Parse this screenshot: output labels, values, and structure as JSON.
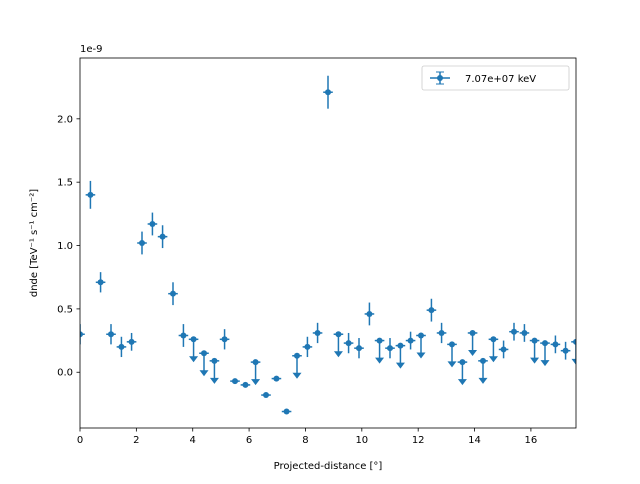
{
  "chart_data": {
    "type": "scatter",
    "subtype": "errorbar",
    "xlabel": "Projected-distance [°]",
    "ylabel": "dnde [TeV⁻¹ s⁻¹ cm⁻²]",
    "y_offset_label": "1e-9",
    "xlim": [
      0,
      17.6
    ],
    "ylim": [
      -0.44,
      2.48
    ],
    "x_ticks": [
      0,
      2,
      4,
      6,
      8,
      10,
      12,
      14,
      16
    ],
    "x_tick_labels": [
      "0",
      "2",
      "4",
      "6",
      "8",
      "10",
      "12",
      "14",
      "16"
    ],
    "y_ticks": [
      0.0,
      0.5,
      1.0,
      1.5,
      2.0
    ],
    "y_tick_labels": [
      "0.0",
      "0.5",
      "1.0",
      "1.5",
      "2.0"
    ],
    "grid": false,
    "legend": {
      "placement": "top-right",
      "entries": [
        "7.07e+07 keV"
      ]
    },
    "color": "#1f77b4",
    "xerr": 0.17,
    "series": [
      {
        "name": "7.07e+07 keV",
        "points": [
          {
            "x": 0.0,
            "y": 0.3,
            "yerr": 0.08,
            "ul": false
          },
          {
            "x": 0.37,
            "y": 1.4,
            "yerr": 0.11,
            "ul": false
          },
          {
            "x": 0.73,
            "y": 0.71,
            "yerr": 0.08,
            "ul": false
          },
          {
            "x": 1.1,
            "y": 0.3,
            "yerr": 0.08,
            "ul": false
          },
          {
            "x": 1.47,
            "y": 0.2,
            "yerr": 0.08,
            "ul": false
          },
          {
            "x": 1.83,
            "y": 0.24,
            "yerr": 0.07,
            "ul": false
          },
          {
            "x": 2.2,
            "y": 1.02,
            "yerr": 0.09,
            "ul": false
          },
          {
            "x": 2.57,
            "y": 1.17,
            "yerr": 0.09,
            "ul": false
          },
          {
            "x": 2.93,
            "y": 1.07,
            "yerr": 0.09,
            "ul": false
          },
          {
            "x": 3.3,
            "y": 0.62,
            "yerr": 0.09,
            "ul": false
          },
          {
            "x": 3.67,
            "y": 0.29,
            "yerr": 0.09,
            "ul": false
          },
          {
            "x": 4.03,
            "y": 0.26,
            "yerr": 0,
            "ul": true
          },
          {
            "x": 4.4,
            "y": 0.15,
            "yerr": 0,
            "ul": true
          },
          {
            "x": 4.77,
            "y": 0.09,
            "yerr": 0,
            "ul": true
          },
          {
            "x": 5.13,
            "y": 0.26,
            "yerr": 0.08,
            "ul": false
          },
          {
            "x": 5.5,
            "y": -0.07,
            "yerr": 0.01,
            "ul": false
          },
          {
            "x": 5.87,
            "y": -0.1,
            "yerr": 0.01,
            "ul": false
          },
          {
            "x": 6.23,
            "y": 0.08,
            "yerr": 0,
            "ul": true
          },
          {
            "x": 6.6,
            "y": -0.18,
            "yerr": 0.01,
            "ul": false
          },
          {
            "x": 6.97,
            "y": -0.05,
            "yerr": 0.01,
            "ul": false
          },
          {
            "x": 7.33,
            "y": -0.31,
            "yerr": 0.01,
            "ul": false
          },
          {
            "x": 7.7,
            "y": 0.13,
            "yerr": 0,
            "ul": true
          },
          {
            "x": 8.07,
            "y": 0.2,
            "yerr": 0.08,
            "ul": false
          },
          {
            "x": 8.43,
            "y": 0.31,
            "yerr": 0.08,
            "ul": false
          },
          {
            "x": 8.8,
            "y": 2.21,
            "yerr": 0.13,
            "ul": false
          },
          {
            "x": 9.17,
            "y": 0.3,
            "yerr": 0,
            "ul": true
          },
          {
            "x": 9.53,
            "y": 0.23,
            "yerr": 0.08,
            "ul": false
          },
          {
            "x": 9.9,
            "y": 0.19,
            "yerr": 0.08,
            "ul": false
          },
          {
            "x": 10.27,
            "y": 0.46,
            "yerr": 0.09,
            "ul": false
          },
          {
            "x": 10.63,
            "y": 0.25,
            "yerr": 0,
            "ul": true
          },
          {
            "x": 11.0,
            "y": 0.19,
            "yerr": 0.08,
            "ul": false
          },
          {
            "x": 11.37,
            "y": 0.21,
            "yerr": 0,
            "ul": true
          },
          {
            "x": 11.73,
            "y": 0.25,
            "yerr": 0.07,
            "ul": false
          },
          {
            "x": 12.1,
            "y": 0.29,
            "yerr": 0,
            "ul": true
          },
          {
            "x": 12.47,
            "y": 0.49,
            "yerr": 0.09,
            "ul": false
          },
          {
            "x": 12.83,
            "y": 0.31,
            "yerr": 0.08,
            "ul": false
          },
          {
            "x": 13.2,
            "y": 0.22,
            "yerr": 0,
            "ul": true
          },
          {
            "x": 13.57,
            "y": 0.08,
            "yerr": 0,
            "ul": true
          },
          {
            "x": 13.93,
            "y": 0.31,
            "yerr": 0,
            "ul": true
          },
          {
            "x": 14.3,
            "y": 0.09,
            "yerr": 0,
            "ul": true
          },
          {
            "x": 14.67,
            "y": 0.26,
            "yerr": 0,
            "ul": true
          },
          {
            "x": 15.03,
            "y": 0.18,
            "yerr": 0.07,
            "ul": false
          },
          {
            "x": 15.4,
            "y": 0.32,
            "yerr": 0.07,
            "ul": false
          },
          {
            "x": 15.77,
            "y": 0.31,
            "yerr": 0.07,
            "ul": false
          },
          {
            "x": 16.13,
            "y": 0.25,
            "yerr": 0,
            "ul": true
          },
          {
            "x": 16.5,
            "y": 0.23,
            "yerr": 0,
            "ul": true
          },
          {
            "x": 16.87,
            "y": 0.22,
            "yerr": 0.07,
            "ul": false
          },
          {
            "x": 17.23,
            "y": 0.17,
            "yerr": 0.07,
            "ul": false
          },
          {
            "x": 17.6,
            "y": 0.24,
            "yerr": 0,
            "ul": true
          }
        ]
      }
    ]
  }
}
